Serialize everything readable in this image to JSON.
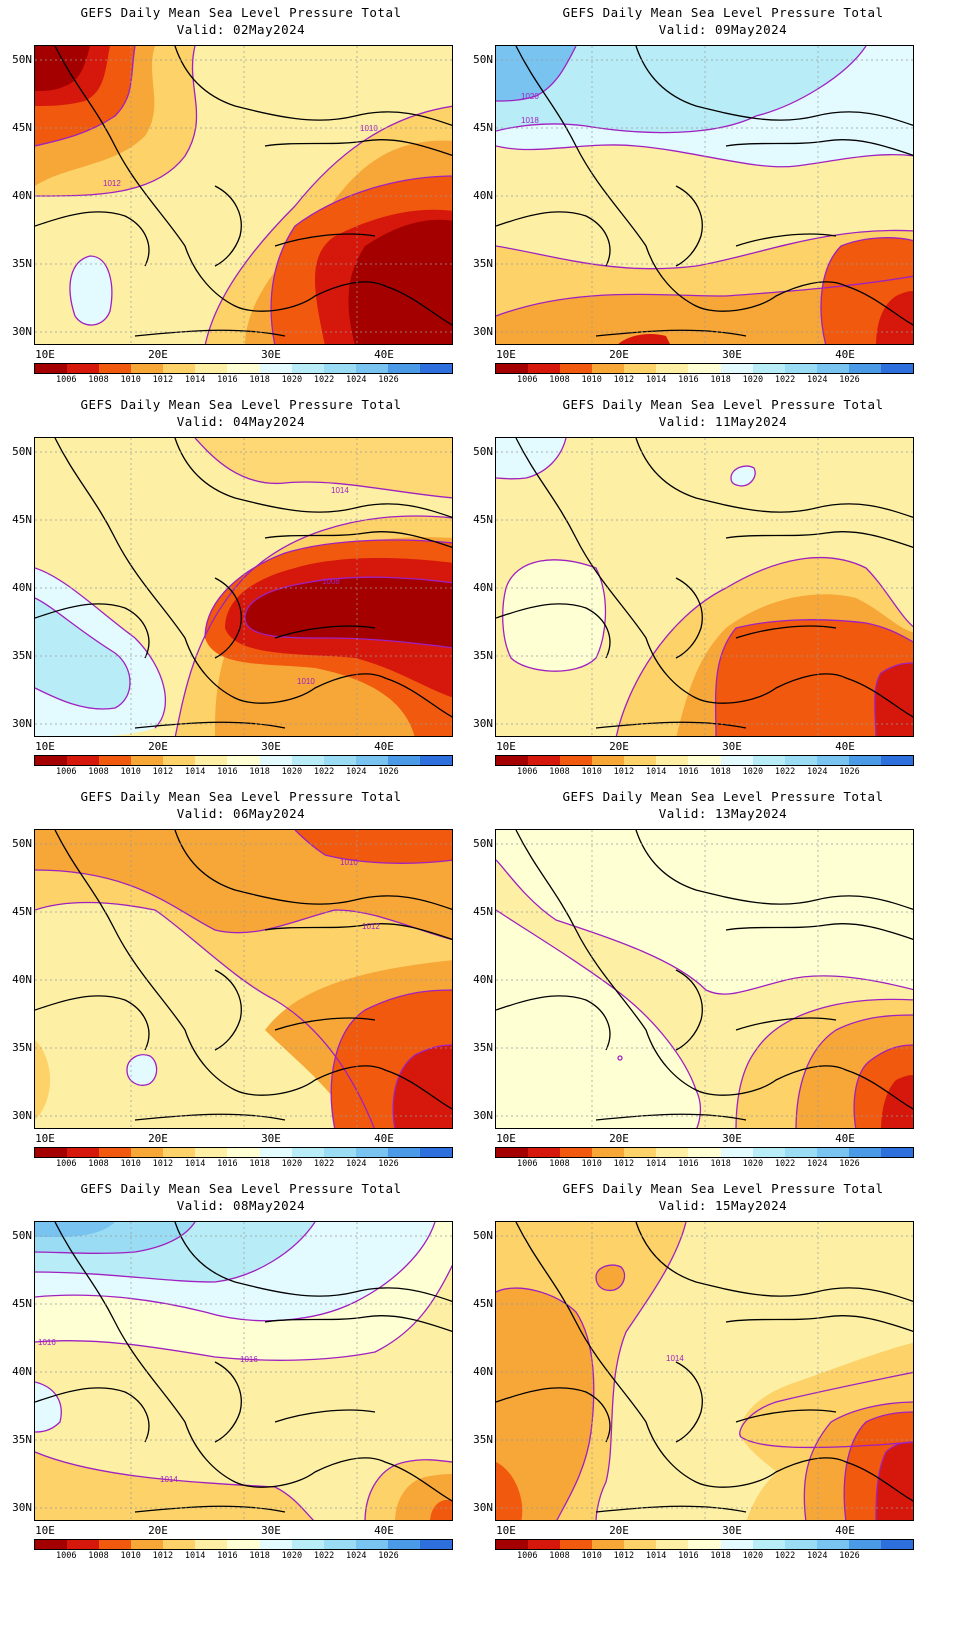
{
  "title_text": "GEFS Daily Mean Sea Level Pressure Total",
  "valid_prefix": "Valid: ",
  "lat_labels": [
    "50N",
    "45N",
    "40N",
    "35N",
    "30N"
  ],
  "lon_labels": [
    "10E",
    "20E",
    "30E",
    "40E"
  ],
  "colorbar": {
    "colors": [
      "#a50000",
      "#d6180c",
      "#f0590e",
      "#f7a638",
      "#fcd269",
      "#fdf0a5",
      "#ffffd4",
      "#e3fbff",
      "#b8edf7",
      "#99dcf3",
      "#79c3f0",
      "#4a9ae8",
      "#2e6fde"
    ],
    "labels": [
      "1006",
      "1008",
      "1010",
      "1012",
      "1014",
      "1016",
      "1018",
      "1020",
      "1022",
      "1024",
      "1026"
    ]
  },
  "contour_color": "#a020c0",
  "panels": [
    {
      "valid": "02May2024",
      "contour_labels": [
        "1010",
        "1012"
      ]
    },
    {
      "valid": "09May2024",
      "contour_labels": [
        "1020",
        "1018"
      ]
    },
    {
      "valid": "04May2024",
      "contour_labels": [
        "1014",
        "1008",
        "1010"
      ]
    },
    {
      "valid": "11May2024",
      "contour_labels": []
    },
    {
      "valid": "06May2024",
      "contour_labels": [
        "1010",
        "1012"
      ]
    },
    {
      "valid": "13May2024",
      "contour_labels": []
    },
    {
      "valid": "08May2024",
      "contour_labels": [
        "1016",
        "1016",
        "1014"
      ]
    },
    {
      "valid": "15May2024",
      "contour_labels": [
        "1014"
      ]
    }
  ]
}
